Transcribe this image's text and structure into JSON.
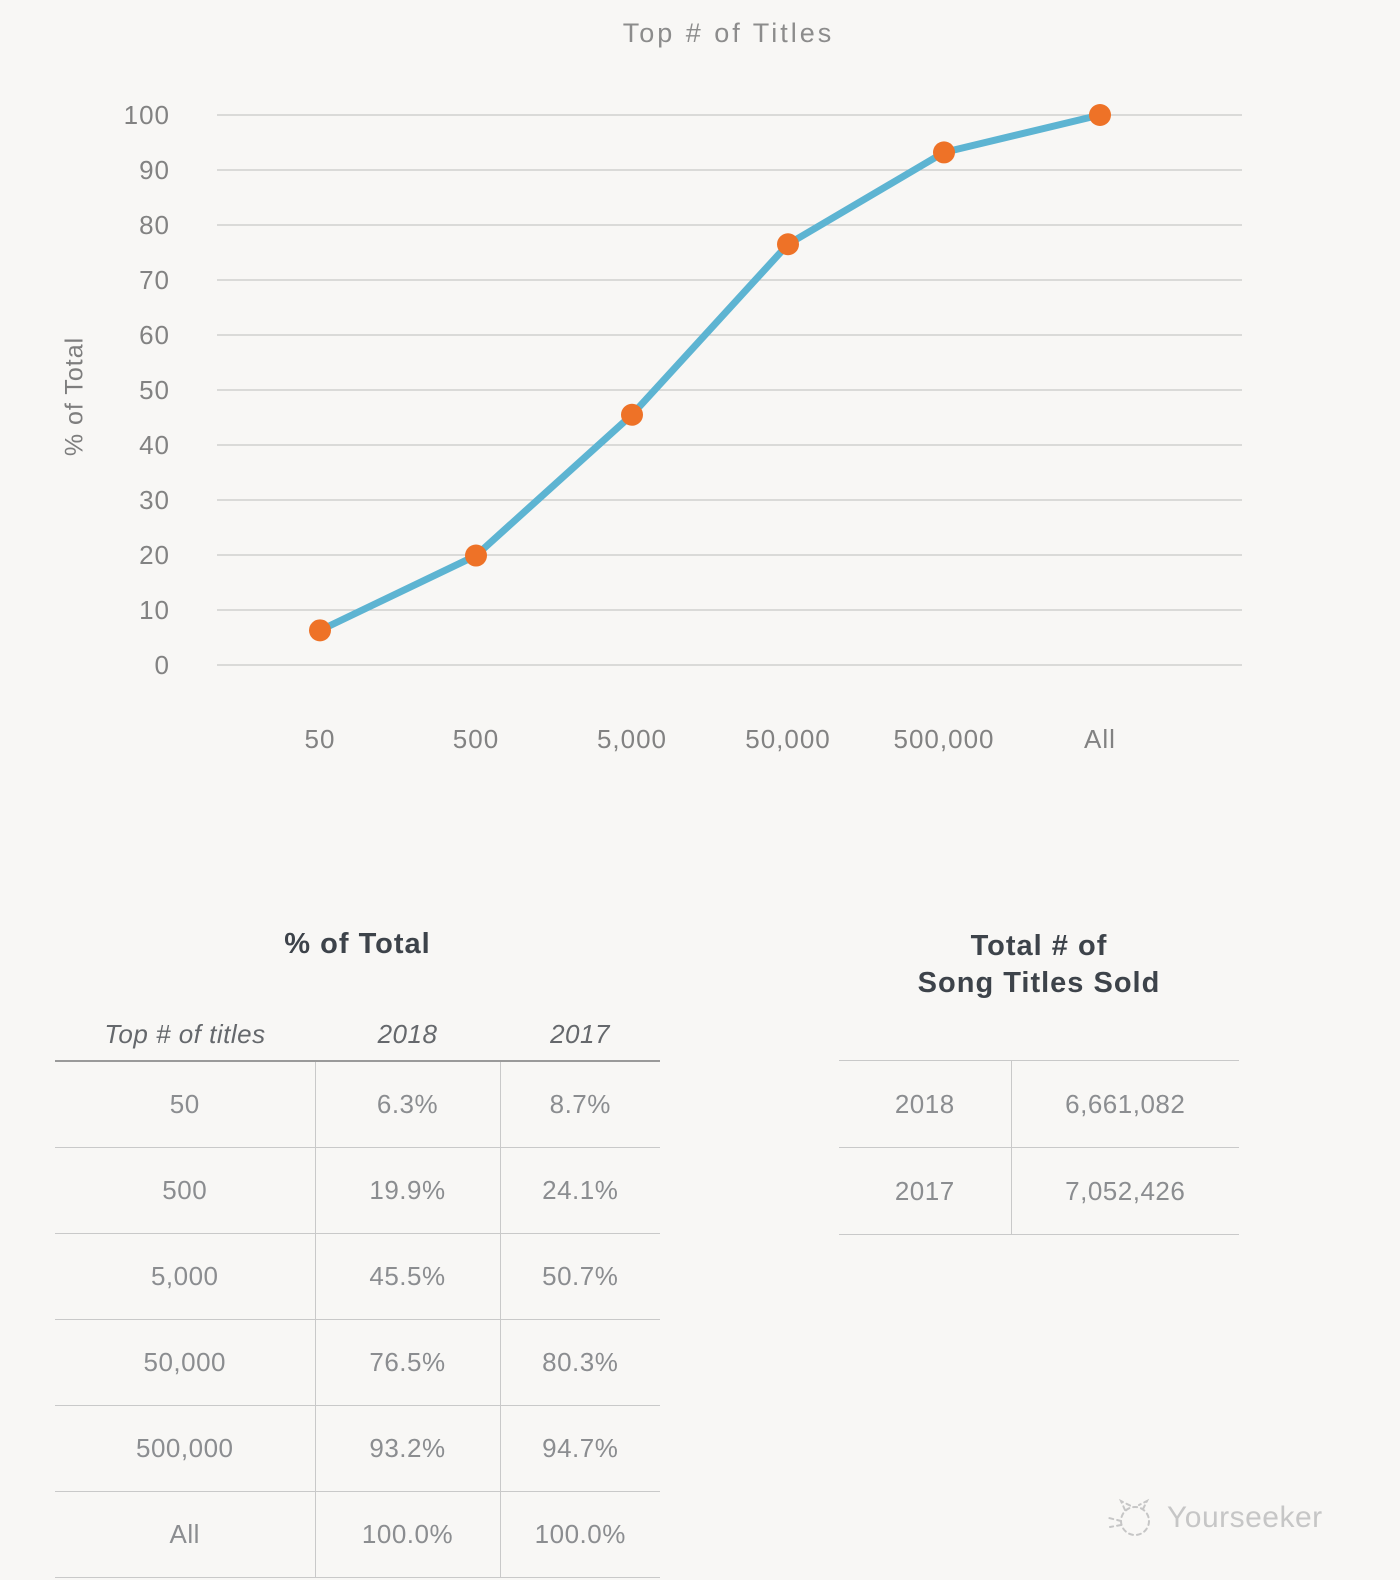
{
  "page": {
    "background": "#f8f7f5"
  },
  "chart_data": {
    "type": "line",
    "title": "Top # of Titles",
    "ylabel": "% of Total",
    "xlabel": "",
    "categories": [
      "50",
      "500",
      "5,000",
      "50,000",
      "500,000",
      "All"
    ],
    "series": [
      {
        "name": "2018",
        "values": [
          6.3,
          19.9,
          45.5,
          76.5,
          93.2,
          100.0
        ]
      }
    ],
    "ylim": [
      0,
      100
    ],
    "ytick_step": 10,
    "grid": "horizontal-only",
    "legend": "none",
    "line_color": "#5db4d2",
    "marker_color": "#ee7227",
    "gridline_color": "#c8c8c8"
  },
  "pct_table": {
    "title": "% of Total",
    "columns": [
      "Top # of titles",
      "2018",
      "2017"
    ],
    "rows": [
      [
        "50",
        "6.3%",
        "8.7%"
      ],
      [
        "500",
        "19.9%",
        "24.1%"
      ],
      [
        "5,000",
        "45.5%",
        "50.7%"
      ],
      [
        "50,000",
        "76.5%",
        "80.3%"
      ],
      [
        "500,000",
        "93.2%",
        "94.7%"
      ],
      [
        "All",
        "100.0%",
        "100.0%"
      ]
    ]
  },
  "totals_table": {
    "title_line1": "Total # of",
    "title_line2": "Song Titles Sold",
    "rows": [
      [
        "2018",
        "6,661,082"
      ],
      [
        "2017",
        "7,052,426"
      ]
    ]
  },
  "watermark": {
    "label": "Yourseeker"
  }
}
